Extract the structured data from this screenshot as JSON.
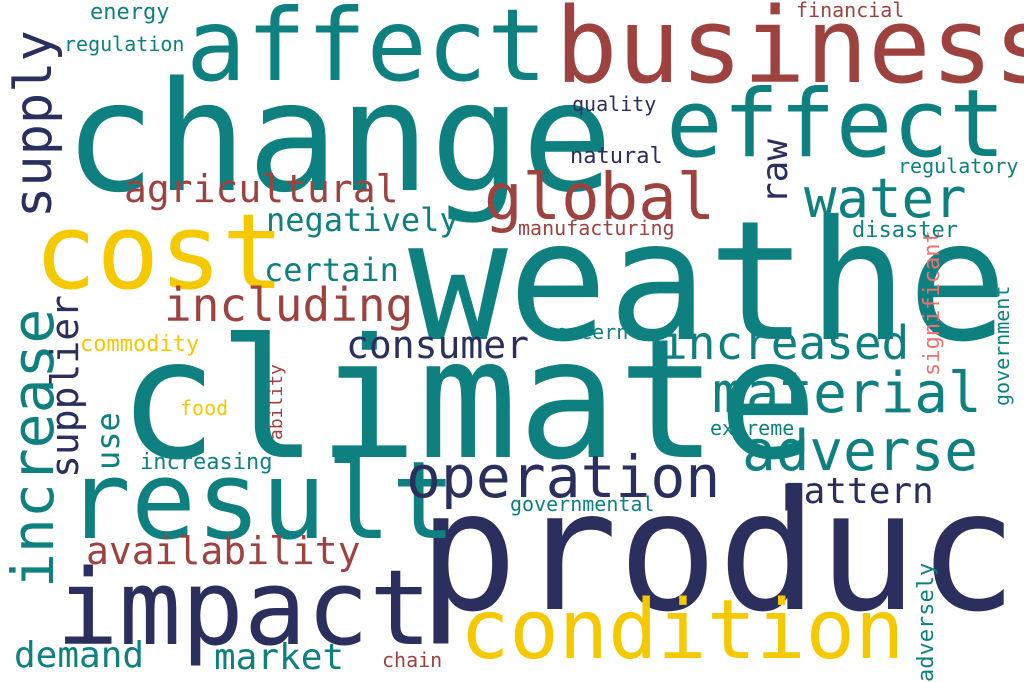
{
  "colors": {
    "teal": "#0f8080",
    "red": "#9e4240",
    "navy": "#2a2f5e",
    "yellow": "#f5c900",
    "pink": "#f0706e",
    "background": "#ffffff"
  },
  "words": {
    "change": {
      "text": "change",
      "color": "#0f8080"
    },
    "weather": {
      "text": "weather",
      "color": "#0f8080"
    },
    "climate": {
      "text": "climate",
      "color": "#0f8080"
    },
    "product": {
      "text": "product",
      "color": "#2a2f5e"
    },
    "business": {
      "text": "business",
      "color": "#9e4240"
    },
    "affect": {
      "text": "affect",
      "color": "#0f8080"
    },
    "effect": {
      "text": "effect",
      "color": "#0f8080"
    },
    "cost": {
      "text": "cost",
      "color": "#f5c900"
    },
    "result": {
      "text": "result",
      "color": "#0f8080"
    },
    "impact": {
      "text": "impact",
      "color": "#2a2f5e"
    },
    "condition": {
      "text": "condition",
      "color": "#f5c900"
    },
    "increase": {
      "text": "increase",
      "color": "#0f8080"
    },
    "supply": {
      "text": "supply",
      "color": "#2a2f5e"
    },
    "global": {
      "text": "global",
      "color": "#9e4240"
    },
    "operation": {
      "text": "operation",
      "color": "#2a2f5e"
    },
    "material": {
      "text": "material",
      "color": "#0f8080"
    },
    "water": {
      "text": "water",
      "color": "#0f8080"
    },
    "adverse": {
      "text": "adverse",
      "color": "#0f8080"
    },
    "increased": {
      "text": "increased",
      "color": "#0f8080"
    },
    "including": {
      "text": "including",
      "color": "#9e4240"
    },
    "agricultural": {
      "text": "agricultural",
      "color": "#9e4240"
    },
    "availability": {
      "text": "availability",
      "color": "#9e4240"
    },
    "consumer": {
      "text": "consumer",
      "color": "#2a2f5e"
    },
    "negatively": {
      "text": "negatively",
      "color": "#0f8080"
    },
    "certain": {
      "text": "certain",
      "color": "#0f8080"
    },
    "pattern": {
      "text": "pattern",
      "color": "#2a2f5e"
    },
    "supplier": {
      "text": "supplier",
      "color": "#2a2f5e"
    },
    "demand": {
      "text": "demand",
      "color": "#0f8080"
    },
    "market": {
      "text": "market",
      "color": "#0f8080"
    },
    "raw": {
      "text": "raw",
      "color": "#2a2f5e"
    },
    "use": {
      "text": "use",
      "color": "#0f8080"
    },
    "energy": {
      "text": "energy",
      "color": "#0f8080"
    },
    "regulation": {
      "text": "regulation",
      "color": "#0f8080"
    },
    "financial": {
      "text": "financial",
      "color": "#9e4240"
    },
    "quality": {
      "text": "quality",
      "color": "#2a2f5e"
    },
    "natural": {
      "text": "natural",
      "color": "#2a2f5e"
    },
    "regulatory": {
      "text": "regulatory",
      "color": "#0f8080"
    },
    "manufacturing": {
      "text": "manufacturing",
      "color": "#9e4240"
    },
    "disaster": {
      "text": "disaster",
      "color": "#0f8080"
    },
    "commodity": {
      "text": "commodity",
      "color": "#f5c900"
    },
    "concern": {
      "text": "concern",
      "color": "#0f8080"
    },
    "food": {
      "text": "food",
      "color": "#f5c900"
    },
    "ability": {
      "text": "ability",
      "color": "#9e4240"
    },
    "extreme": {
      "text": "extreme",
      "color": "#0f8080"
    },
    "increasing": {
      "text": "increasing",
      "color": "#0f8080"
    },
    "governmental": {
      "text": "governmental",
      "color": "#0f8080"
    },
    "chain": {
      "text": "chain",
      "color": "#9e4240"
    },
    "significant": {
      "text": "significant",
      "color": "#f0706e"
    },
    "government": {
      "text": "government",
      "color": "#0f8080"
    },
    "adversely": {
      "text": "adversely",
      "color": "#0f8080"
    }
  }
}
